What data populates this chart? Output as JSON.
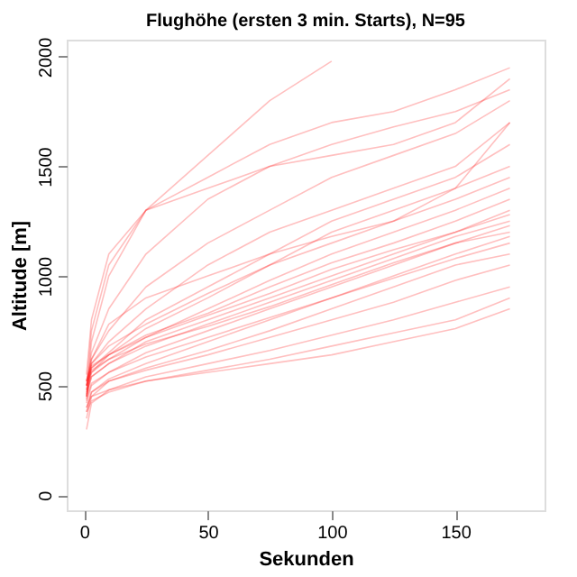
{
  "chart_data": {
    "type": "line",
    "title": "Flughöhe (ersten 3 min. Starts), N=95",
    "xlabel": "Sekunden",
    "ylabel": "Altitude [m]",
    "x": [
      1,
      3,
      10,
      25,
      50,
      75,
      100,
      125,
      150,
      172
    ],
    "xlim": [
      -7,
      186
    ],
    "xticks": [
      0,
      50,
      100,
      150
    ],
    "ylim": [
      -69,
      2078
    ],
    "yticks": [
      0,
      500,
      1000,
      1500,
      2000
    ],
    "grid": false,
    "legend": false,
    "marker": "none",
    "line_style": "solid",
    "series": [
      {
        "color": "#ff0000",
        "values": [
          450,
          700,
          1000,
          1300,
          1550,
          1800,
          1980,
          null,
          null,
          null
        ]
      },
      {
        "color": "#ff0000",
        "values": [
          500,
          750,
          1050,
          1300,
          1450,
          1600,
          1700,
          1750,
          1850,
          1950
        ]
      },
      {
        "color": "#ff0000",
        "values": [
          480,
          650,
          850,
          1100,
          1350,
          1500,
          1600,
          1680,
          1750,
          1850
        ]
      },
      {
        "color": "#ff0000",
        "values": [
          520,
          620,
          750,
          950,
          1150,
          1300,
          1450,
          1550,
          1650,
          1800
        ]
      },
      {
        "color": "#ff0000",
        "values": [
          430,
          600,
          700,
          850,
          1050,
          1200,
          1300,
          1400,
          1500,
          1700
        ]
      },
      {
        "color": "#ff0000",
        "values": [
          500,
          580,
          650,
          800,
          950,
          1100,
          1250,
          1350,
          1450,
          1600
        ]
      },
      {
        "color": "#ff0000",
        "values": [
          460,
          560,
          640,
          760,
          900,
          1050,
          1200,
          1300,
          1400,
          1500
        ]
      },
      {
        "color": "#ff0000",
        "values": [
          520,
          600,
          680,
          780,
          920,
          1050,
          1150,
          1250,
          1350,
          1450
        ]
      },
      {
        "color": "#ff0000",
        "values": [
          480,
          560,
          620,
          720,
          850,
          980,
          1100,
          1200,
          1300,
          1400
        ]
      },
      {
        "color": "#ff0000",
        "values": [
          500,
          580,
          640,
          730,
          830,
          950,
          1060,
          1150,
          1250,
          1350
        ]
      },
      {
        "color": "#ff0000",
        "values": [
          450,
          540,
          600,
          700,
          800,
          900,
          1000,
          1100,
          1200,
          1300
        ]
      },
      {
        "color": "#ff0000",
        "values": [
          520,
          590,
          640,
          720,
          820,
          920,
          1030,
          1120,
          1200,
          1280
        ]
      },
      {
        "color": "#ff0000",
        "values": [
          470,
          540,
          600,
          680,
          780,
          880,
          980,
          1080,
          1180,
          1250
        ]
      },
      {
        "color": "#ff0000",
        "values": [
          420,
          500,
          560,
          650,
          750,
          850,
          950,
          1050,
          1150,
          1230
        ]
      },
      {
        "color": "#ff0000",
        "values": [
          500,
          570,
          620,
          690,
          770,
          860,
          960,
          1060,
          1150,
          1200
        ]
      },
      {
        "color": "#ff0000",
        "values": [
          380,
          470,
          530,
          600,
          700,
          800,
          900,
          1000,
          1100,
          1180
        ]
      },
      {
        "color": "#ff0000",
        "values": [
          440,
          510,
          560,
          630,
          720,
          810,
          900,
          990,
          1080,
          1150
        ]
      },
      {
        "color": "#ff0000",
        "values": [
          350,
          450,
          520,
          580,
          660,
          750,
          850,
          950,
          1050,
          1100
        ]
      },
      {
        "color": "#ff0000",
        "values": [
          400,
          470,
          520,
          570,
          640,
          720,
          800,
          880,
          980,
          1050
        ]
      },
      {
        "color": "#ff0000",
        "values": [
          300,
          420,
          480,
          540,
          600,
          660,
          730,
          800,
          880,
          950
        ]
      },
      {
        "color": "#ff0000",
        "values": [
          380,
          430,
          470,
          520,
          570,
          620,
          680,
          740,
          800,
          900
        ]
      },
      {
        "color": "#ff0000",
        "values": [
          400,
          450,
          480,
          520,
          560,
          600,
          640,
          700,
          760,
          850
        ]
      },
      {
        "color": "#ff0000",
        "values": [
          550,
          800,
          1100,
          1300,
          1400,
          1500,
          1550,
          1600,
          1700,
          1900
        ]
      },
      {
        "color": "#ff0000",
        "values": [
          450,
          620,
          780,
          900,
          1000,
          1100,
          1180,
          1250,
          1400,
          1700
        ]
      }
    ]
  }
}
